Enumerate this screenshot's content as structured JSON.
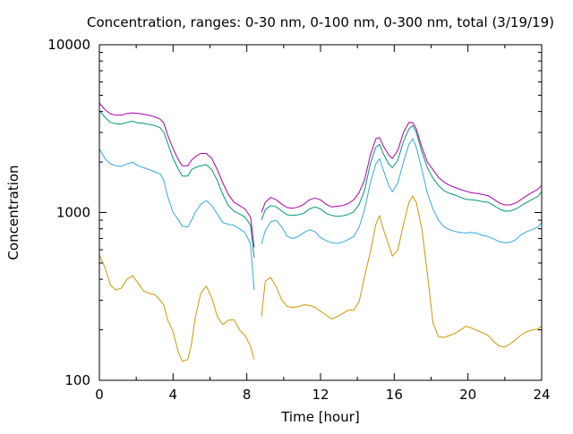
{
  "chart_data": {
    "type": "line",
    "title": "Concentration, ranges: 0-30 nm, 0-100 nm, 0-300 nm, total (3/19/19)",
    "xlabel": "Time [hour]",
    "ylabel": "Concentration",
    "xlim": [
      0,
      24
    ],
    "ylim": [
      100,
      10000
    ],
    "yscale": "log",
    "grid": false,
    "legend": "none",
    "x_ticks": [
      0,
      4,
      8,
      12,
      16,
      20,
      24
    ],
    "x_tick_labels": [
      "0",
      "4",
      "8",
      "12",
      "16",
      "20",
      "24"
    ],
    "y_ticks": [
      100,
      1000,
      10000
    ],
    "y_tick_labels": [
      "100",
      "1000",
      "10000"
    ],
    "series": [
      {
        "color": "#cc9900",
        "segments": [
          {
            "x": [
              0,
              0.3,
              0.6,
              0.9,
              1.2,
              1.5,
              1.8,
              2.1,
              2.4,
              2.7,
              3.0,
              3.3,
              3.5,
              3.7,
              4.0,
              4.3,
              4.5,
              4.8,
              5.0,
              5.2,
              5.5,
              5.8,
              6.1,
              6.4,
              6.7,
              7.0,
              7.3,
              7.6,
              7.9,
              8.2,
              8.4
            ],
            "y": [
              560,
              470,
              370,
              345,
              355,
              400,
              420,
              380,
              340,
              330,
              325,
              300,
              280,
              230,
              195,
              145,
              130,
              133,
              165,
              235,
              330,
              365,
              310,
              240,
              215,
              228,
              230,
              200,
              185,
              160,
              133
            ]
          },
          {
            "x": [
              8.8,
              9.0,
              9.3,
              9.6,
              9.9,
              10.2,
              10.5,
              10.8,
              11.1,
              11.4,
              11.7,
              12.0,
              12.3,
              12.6,
              12.9,
              13.2,
              13.5,
              13.8,
              14.1,
              14.4,
              14.7,
              15.0,
              15.2,
              15.4,
              15.7,
              15.9,
              16.2,
              16.5,
              16.8,
              17.0,
              17.2,
              17.5,
              17.8,
              18.1,
              18.4,
              18.7,
              19.0,
              19.3,
              19.6,
              19.9,
              20.2,
              20.5,
              20.8,
              21.1,
              21.4,
              21.7,
              22.0,
              22.3,
              22.6,
              22.9,
              23.2,
              23.5,
              23.8,
              24.0
            ],
            "y": [
              240,
              390,
              410,
              360,
              300,
              275,
              272,
              275,
              282,
              280,
              272,
              258,
              245,
              232,
              240,
              250,
              262,
              262,
              295,
              420,
              580,
              850,
              960,
              800,
              640,
              550,
              600,
              850,
              1150,
              1250,
              1150,
              800,
              430,
              220,
              182,
              180,
              185,
              190,
              200,
              210,
              205,
              198,
              192,
              185,
              170,
              160,
              158,
              165,
              175,
              187,
              195,
              200,
              202,
              210
            ]
          }
        ]
      },
      {
        "color": "#33aadd",
        "segments": [
          {
            "x": [
              0,
              0.3,
              0.6,
              0.9,
              1.2,
              1.5,
              1.8,
              2.1,
              2.4,
              2.7,
              3.0,
              3.3,
              3.5,
              3.7,
              4.0,
              4.3,
              4.5,
              4.8,
              5.0,
              5.2,
              5.5,
              5.8,
              6.1,
              6.4,
              6.7,
              7.0,
              7.3,
              7.6,
              7.9,
              8.2,
              8.4
            ],
            "y": [
              2400,
              2100,
              1950,
              1900,
              1880,
              1950,
              2000,
              1900,
              1850,
              1800,
              1750,
              1700,
              1550,
              1250,
              1000,
              900,
              830,
              820,
              900,
              1000,
              1120,
              1180,
              1100,
              980,
              870,
              850,
              840,
              800,
              760,
              650,
              345
            ]
          },
          {
            "x": [
              8.8,
              9.0,
              9.3,
              9.6,
              9.9,
              10.2,
              10.5,
              10.8,
              11.1,
              11.4,
              11.7,
              12.0,
              12.3,
              12.6,
              12.9,
              13.2,
              13.5,
              13.8,
              14.1,
              14.4,
              14.7,
              15.0,
              15.2,
              15.4,
              15.7,
              15.9,
              16.2,
              16.5,
              16.8,
              17.0,
              17.2,
              17.5,
              17.8,
              18.1,
              18.4,
              18.7,
              19.0,
              19.3,
              19.6,
              19.9,
              20.2,
              20.5,
              20.8,
              21.1,
              21.4,
              21.7,
              22.0,
              22.3,
              22.6,
              22.9,
              23.2,
              23.5,
              23.8,
              24.0
            ],
            "y": [
              650,
              780,
              880,
              900,
              820,
              720,
              700,
              720,
              760,
              790,
              770,
              710,
              680,
              660,
              655,
              665,
              690,
              720,
              820,
              1050,
              1500,
              1950,
              2100,
              1800,
              1450,
              1330,
              1500,
              2000,
              2550,
              2750,
              2450,
              1800,
              1300,
              1050,
              900,
              820,
              790,
              770,
              760,
              755,
              760,
              750,
              730,
              720,
              695,
              670,
              660,
              665,
              690,
              740,
              770,
              790,
              820,
              870
            ]
          }
        ]
      },
      {
        "color": "#009977",
        "segments": [
          {
            "x": [
              0,
              0.3,
              0.6,
              0.9,
              1.2,
              1.5,
              1.8,
              2.1,
              2.4,
              2.7,
              3.0,
              3.3,
              3.5,
              3.7,
              4.0,
              4.3,
              4.5,
              4.8,
              5.0,
              5.2,
              5.5,
              5.8,
              6.1,
              6.4,
              6.7,
              7.0,
              7.3,
              7.6,
              7.9,
              8.2,
              8.4
            ],
            "y": [
              4050,
              3700,
              3450,
              3380,
              3370,
              3450,
              3500,
              3420,
              3400,
              3350,
              3300,
              3200,
              3000,
              2600,
              2100,
              1800,
              1650,
              1650,
              1800,
              1850,
              1900,
              1930,
              1800,
              1550,
              1280,
              1100,
              1020,
              980,
              940,
              840,
              540
            ]
          },
          {
            "x": [
              8.8,
              9.0,
              9.3,
              9.6,
              9.9,
              10.2,
              10.5,
              10.8,
              11.1,
              11.4,
              11.7,
              12.0,
              12.3,
              12.6,
              12.9,
              13.2,
              13.5,
              13.8,
              14.1,
              14.4,
              14.7,
              15.0,
              15.2,
              15.4,
              15.7,
              15.9,
              16.2,
              16.5,
              16.8,
              17.0,
              17.2,
              17.5,
              17.8,
              18.1,
              18.4,
              18.7,
              19.0,
              19.3,
              19.6,
              19.9,
              20.2,
              20.5,
              20.8,
              21.1,
              21.4,
              21.7,
              22.0,
              22.3,
              22.6,
              22.9,
              23.2,
              23.5,
              23.8,
              24.0
            ],
            "y": [
              900,
              1040,
              1100,
              1080,
              1020,
              970,
              960,
              970,
              990,
              1050,
              1080,
              1050,
              990,
              960,
              950,
              955,
              975,
              1010,
              1120,
              1370,
              1950,
              2450,
              2550,
              2250,
              1950,
              1850,
              2050,
              2650,
              3150,
              3300,
              3000,
              2300,
              1850,
              1600,
              1450,
              1350,
              1300,
              1270,
              1230,
              1200,
              1190,
              1180,
              1160,
              1150,
              1100,
              1050,
              1020,
              1020,
              1050,
              1100,
              1150,
              1200,
              1250,
              1330
            ]
          }
        ]
      },
      {
        "color": "#aa00aa",
        "segments": [
          {
            "x": [
              0,
              0.3,
              0.6,
              0.9,
              1.2,
              1.5,
              1.8,
              2.1,
              2.4,
              2.7,
              3.0,
              3.3,
              3.5,
              3.7,
              4.0,
              4.3,
              4.5,
              4.8,
              5.0,
              5.2,
              5.5,
              5.8,
              6.1,
              6.4,
              6.7,
              7.0,
              7.3,
              7.6,
              7.9,
              8.2,
              8.4
            ],
            "y": [
              4500,
              4100,
              3880,
              3800,
              3800,
              3900,
              3930,
              3900,
              3850,
              3800,
              3720,
              3600,
              3400,
              2900,
              2400,
              2050,
              1900,
              1900,
              2050,
              2150,
              2250,
              2250,
              2100,
              1800,
              1500,
              1280,
              1150,
              1100,
              1050,
              940,
              620
            ]
          },
          {
            "x": [
              8.8,
              9.0,
              9.3,
              9.6,
              9.9,
              10.2,
              10.5,
              10.8,
              11.1,
              11.4,
              11.7,
              12.0,
              12.3,
              12.6,
              12.9,
              13.2,
              13.5,
              13.8,
              14.1,
              14.4,
              14.7,
              15.0,
              15.2,
              15.4,
              15.7,
              15.9,
              16.2,
              16.5,
              16.8,
              17.0,
              17.2,
              17.5,
              17.8,
              18.1,
              18.4,
              18.7,
              19.0,
              19.3,
              19.6,
              19.9,
              20.2,
              20.5,
              20.8,
              21.1,
              21.4,
              21.7,
              22.0,
              22.3,
              22.6,
              22.9,
              23.2,
              23.5,
              23.8,
              24.0
            ],
            "y": [
              1000,
              1150,
              1230,
              1190,
              1120,
              1070,
              1060,
              1080,
              1120,
              1190,
              1220,
              1190,
              1120,
              1080,
              1090,
              1100,
              1130,
              1190,
              1320,
              1580,
              2200,
              2750,
              2800,
              2500,
              2200,
              2100,
              2350,
              3000,
              3450,
              3450,
              3150,
              2450,
              2000,
              1800,
              1620,
              1520,
              1450,
              1410,
              1370,
              1340,
              1310,
              1300,
              1280,
              1260,
              1200,
              1140,
              1110,
              1110,
              1140,
              1200,
              1260,
              1320,
              1380,
              1450
            ]
          }
        ]
      }
    ]
  }
}
